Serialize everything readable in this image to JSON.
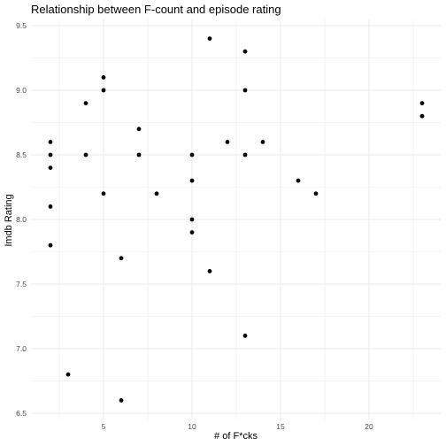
{
  "chart_data": {
    "type": "scatter",
    "title": "Relationship between F-count and episode rating",
    "xlabel": "# of F*cks",
    "ylabel": "Imdb Rating",
    "xlim": [
      1.9,
      23.1
    ],
    "ylim": [
      6.6,
      9.4
    ],
    "x_ticks": [
      5,
      10,
      15,
      20
    ],
    "y_ticks": [
      6.5,
      7.0,
      7.5,
      8.0,
      8.5,
      9.0,
      9.5
    ],
    "x_tick_labels": [
      "5",
      "10",
      "15",
      "20"
    ],
    "y_tick_labels": [
      "6.5",
      "7.0",
      "7.5",
      "8.0",
      "8.5",
      "9.0",
      "9.5"
    ],
    "grid": true,
    "legend": "none",
    "point_color": "#000000",
    "grid_color": "#ebebeb",
    "points": [
      {
        "x": 2,
        "y": 8.6
      },
      {
        "x": 2,
        "y": 8.5
      },
      {
        "x": 2,
        "y": 8.4
      },
      {
        "x": 2,
        "y": 8.1
      },
      {
        "x": 2,
        "y": 7.8
      },
      {
        "x": 3,
        "y": 6.8
      },
      {
        "x": 4,
        "y": 8.9
      },
      {
        "x": 4,
        "y": 8.5
      },
      {
        "x": 5,
        "y": 9.1
      },
      {
        "x": 5,
        "y": 9.0
      },
      {
        "x": 5,
        "y": 8.2
      },
      {
        "x": 6,
        "y": 7.7
      },
      {
        "x": 6,
        "y": 6.6
      },
      {
        "x": 7,
        "y": 8.7
      },
      {
        "x": 7,
        "y": 8.5
      },
      {
        "x": 8,
        "y": 8.2
      },
      {
        "x": 10,
        "y": 8.5
      },
      {
        "x": 10,
        "y": 8.3
      },
      {
        "x": 10,
        "y": 8.0
      },
      {
        "x": 10,
        "y": 7.9
      },
      {
        "x": 11,
        "y": 9.4
      },
      {
        "x": 11,
        "y": 7.6
      },
      {
        "x": 12,
        "y": 8.6
      },
      {
        "x": 13,
        "y": 9.3
      },
      {
        "x": 13,
        "y": 9.0
      },
      {
        "x": 13,
        "y": 8.5
      },
      {
        "x": 13,
        "y": 7.1
      },
      {
        "x": 14,
        "y": 8.6
      },
      {
        "x": 16,
        "y": 8.3
      },
      {
        "x": 17,
        "y": 8.2
      },
      {
        "x": 23,
        "y": 8.9
      },
      {
        "x": 23,
        "y": 8.8
      }
    ]
  }
}
